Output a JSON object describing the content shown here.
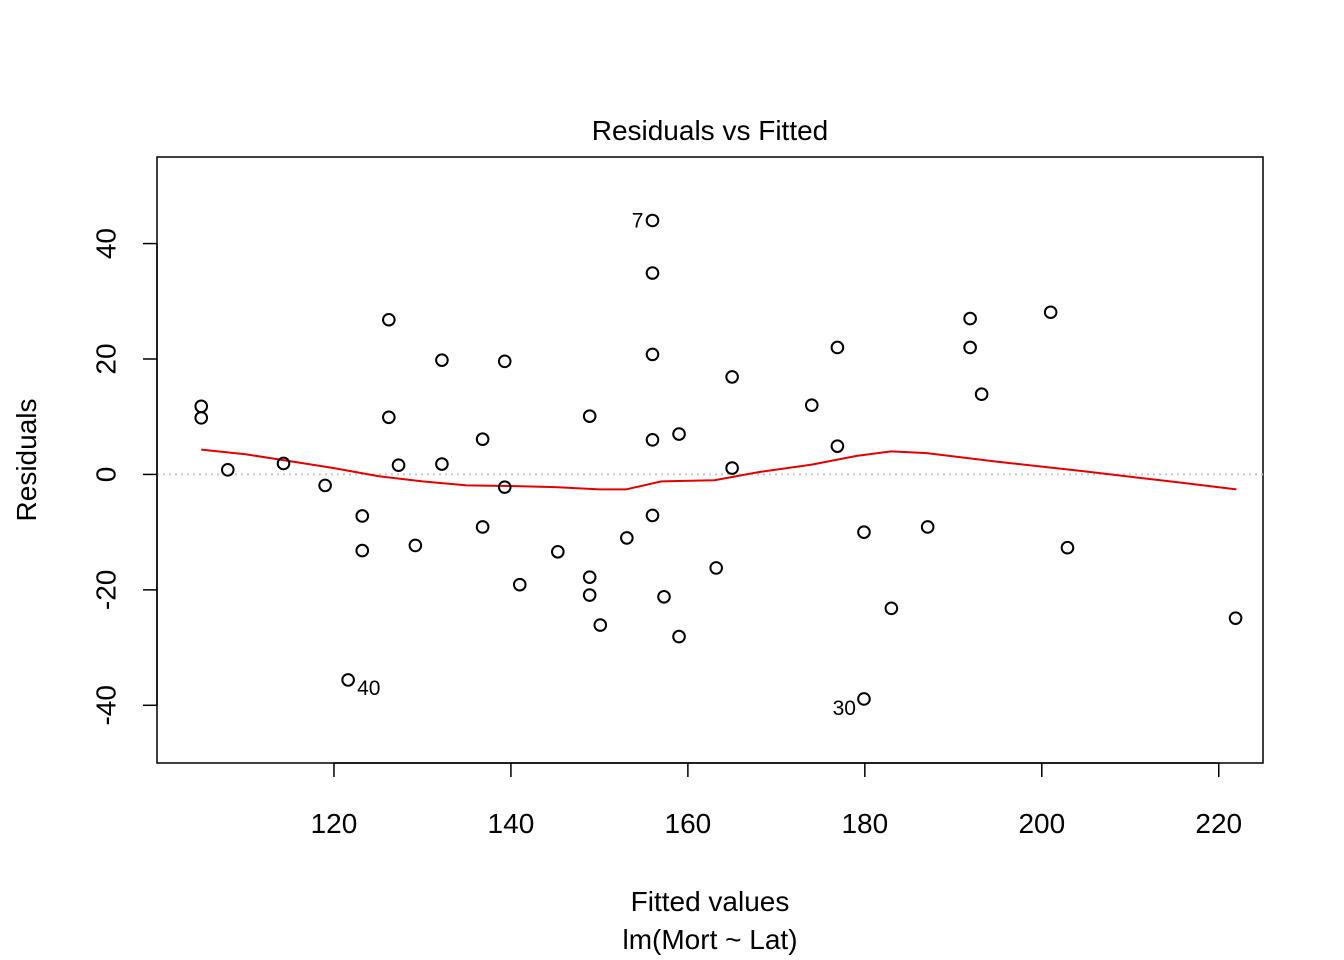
{
  "chart_data": {
    "type": "scatter",
    "title": "Residuals vs Fitted",
    "xlabel": "Fitted values",
    "subtitle": "lm(Mort ~ Lat)",
    "ylabel": "Residuals",
    "xlim": [
      100,
      225
    ],
    "ylim": [
      -50,
      55
    ],
    "x_ticks": [
      120,
      140,
      160,
      180,
      200,
      220
    ],
    "y_ticks": [
      -40,
      -20,
      0,
      20,
      40
    ],
    "grid": false,
    "zero_reference_line": {
      "y": 0,
      "style": "dotted",
      "color": "#c8c8c8"
    },
    "colors": {
      "points": "#000000",
      "smooth": "#e60000",
      "reference": "#c8c8c8"
    },
    "points": [
      {
        "x": 105.0,
        "y": 11.8
      },
      {
        "x": 105.0,
        "y": 9.8
      },
      {
        "x": 108.0,
        "y": 0.8
      },
      {
        "x": 114.3,
        "y": 1.9
      },
      {
        "x": 119.0,
        "y": -1.9
      },
      {
        "x": 121.6,
        "y": -35.6,
        "label": "40"
      },
      {
        "x": 123.2,
        "y": -7.2
      },
      {
        "x": 123.2,
        "y": -13.2
      },
      {
        "x": 126.2,
        "y": 26.8
      },
      {
        "x": 126.2,
        "y": 9.9
      },
      {
        "x": 127.3,
        "y": 1.6
      },
      {
        "x": 129.2,
        "y": -12.3
      },
      {
        "x": 132.2,
        "y": 19.8
      },
      {
        "x": 132.2,
        "y": 1.8
      },
      {
        "x": 136.8,
        "y": 6.1
      },
      {
        "x": 136.8,
        "y": -9.1
      },
      {
        "x": 139.3,
        "y": 19.6
      },
      {
        "x": 139.3,
        "y": -2.2
      },
      {
        "x": 141.0,
        "y": -19.1
      },
      {
        "x": 145.3,
        "y": -13.4
      },
      {
        "x": 148.9,
        "y": 10.1
      },
      {
        "x": 148.9,
        "y": -17.8
      },
      {
        "x": 148.9,
        "y": -20.9
      },
      {
        "x": 150.1,
        "y": -26.1
      },
      {
        "x": 153.1,
        "y": -11.0
      },
      {
        "x": 156.0,
        "y": 44.0,
        "label": "7"
      },
      {
        "x": 156.0,
        "y": 34.9
      },
      {
        "x": 156.0,
        "y": 20.8
      },
      {
        "x": 156.0,
        "y": 6.0
      },
      {
        "x": 156.0,
        "y": -7.1
      },
      {
        "x": 157.3,
        "y": -21.2
      },
      {
        "x": 159.0,
        "y": 7.0
      },
      {
        "x": 159.0,
        "y": -28.1
      },
      {
        "x": 163.2,
        "y": -16.2
      },
      {
        "x": 165.0,
        "y": 16.9
      },
      {
        "x": 165.0,
        "y": 1.1
      },
      {
        "x": 174.0,
        "y": 12.0
      },
      {
        "x": 176.9,
        "y": 22.0
      },
      {
        "x": 176.9,
        "y": 4.9
      },
      {
        "x": 179.9,
        "y": -10.0
      },
      {
        "x": 179.9,
        "y": -38.9,
        "label": "30"
      },
      {
        "x": 183.0,
        "y": -23.2
      },
      {
        "x": 187.1,
        "y": -9.1
      },
      {
        "x": 191.9,
        "y": 27.0
      },
      {
        "x": 191.9,
        "y": 22.0
      },
      {
        "x": 193.2,
        "y": 13.9
      },
      {
        "x": 201.0,
        "y": 28.1
      },
      {
        "x": 202.9,
        "y": -12.7
      },
      {
        "x": 221.9,
        "y": -24.9
      }
    ],
    "smooth_line": [
      {
        "x": 105.0,
        "y": 4.3
      },
      {
        "x": 110.0,
        "y": 3.5
      },
      {
        "x": 115.0,
        "y": 2.3
      },
      {
        "x": 120.0,
        "y": 1.1
      },
      {
        "x": 125.0,
        "y": -0.3
      },
      {
        "x": 130.0,
        "y": -1.2
      },
      {
        "x": 135.0,
        "y": -1.9
      },
      {
        "x": 140.0,
        "y": -2.0
      },
      {
        "x": 145.0,
        "y": -2.2
      },
      {
        "x": 150.0,
        "y": -2.6
      },
      {
        "x": 153.0,
        "y": -2.6
      },
      {
        "x": 157.0,
        "y": -1.2
      },
      {
        "x": 163.0,
        "y": -1.0
      },
      {
        "x": 168.0,
        "y": 0.4
      },
      {
        "x": 174.0,
        "y": 1.7
      },
      {
        "x": 179.0,
        "y": 3.2
      },
      {
        "x": 183.0,
        "y": 4.0
      },
      {
        "x": 187.0,
        "y": 3.7
      },
      {
        "x": 195.0,
        "y": 2.2
      },
      {
        "x": 205.0,
        "y": 0.5
      },
      {
        "x": 215.0,
        "y": -1.3
      },
      {
        "x": 222.0,
        "y": -2.6
      }
    ]
  }
}
